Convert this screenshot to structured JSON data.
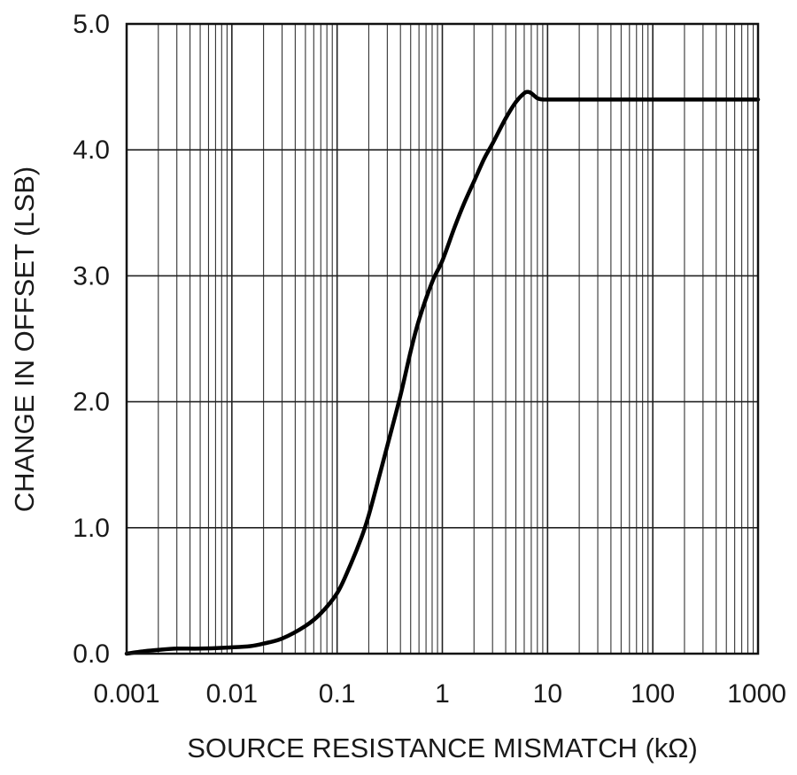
{
  "chart_data": {
    "type": "line",
    "title": "",
    "xlabel": "SOURCE RESISTANCE MISMATCH (kΩ)",
    "ylabel": "CHANGE IN OFFSET (LSB)",
    "xscale": "log",
    "xlim": [
      0.001,
      1000
    ],
    "ylim": [
      0,
      5
    ],
    "grid": true,
    "x_ticks": [
      {
        "value": 0.001,
        "label": "0.001"
      },
      {
        "value": 0.01,
        "label": "0.01"
      },
      {
        "value": 0.1,
        "label": "0.1"
      },
      {
        "value": 1,
        "label": "1"
      },
      {
        "value": 10,
        "label": "10"
      },
      {
        "value": 100,
        "label": "100"
      },
      {
        "value": 1000,
        "label": "1000"
      }
    ],
    "y_ticks": [
      {
        "value": 0,
        "label": "0.0"
      },
      {
        "value": 1,
        "label": "1.0"
      },
      {
        "value": 2,
        "label": "2.0"
      },
      {
        "value": 3,
        "label": "3.0"
      },
      {
        "value": 4,
        "label": "4.0"
      },
      {
        "value": 5,
        "label": "5.0"
      }
    ],
    "series": [
      {
        "x": [
          0.001,
          0.0015,
          0.002,
          0.003,
          0.005,
          0.01,
          0.015,
          0.02,
          0.03,
          0.05,
          0.07,
          0.1,
          0.13,
          0.17,
          0.2,
          0.25,
          0.3,
          0.4,
          0.5,
          0.6,
          0.8,
          1.0,
          1.3,
          1.6,
          2.0,
          2.5,
          3.0,
          4.0,
          5.0,
          6.0,
          6.5,
          7.0,
          8.0,
          9.0,
          10,
          20,
          50,
          100,
          300,
          1000
        ],
        "y": [
          0.0,
          0.02,
          0.03,
          0.04,
          0.04,
          0.05,
          0.06,
          0.08,
          0.12,
          0.22,
          0.32,
          0.48,
          0.68,
          0.92,
          1.1,
          1.4,
          1.65,
          2.05,
          2.4,
          2.65,
          2.95,
          3.12,
          3.38,
          3.57,
          3.75,
          3.93,
          4.05,
          4.25,
          4.38,
          4.45,
          4.46,
          4.45,
          4.41,
          4.4,
          4.4,
          4.4,
          4.4,
          4.4,
          4.4,
          4.4
        ],
        "color": "#000000"
      }
    ]
  }
}
